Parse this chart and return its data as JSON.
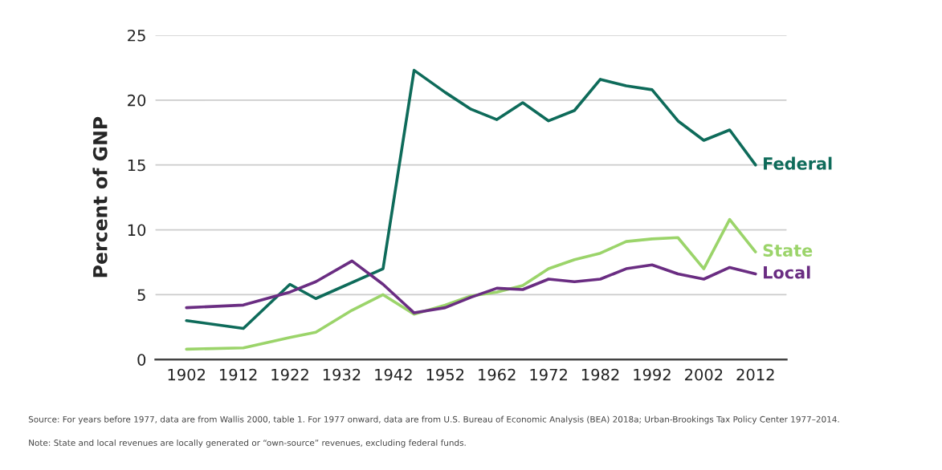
{
  "chart_data": {
    "type": "line",
    "ylabel": "Percent of GNP",
    "x": [
      1902,
      1913,
      1922,
      1927,
      1934,
      1940,
      1946,
      1952,
      1957,
      1962,
      1967,
      1972,
      1977,
      1982,
      1987,
      1992,
      1997,
      2002,
      2007,
      2012
    ],
    "series": [
      {
        "name": "Federal",
        "color": "#0e6b5a",
        "x": [
          1902,
          1913,
          1922,
          1927,
          1940,
          1946,
          1952,
          1957,
          1962,
          1967,
          1972,
          1977,
          1982,
          1987,
          1992,
          1997,
          2002,
          2007,
          2012
        ],
        "values": [
          3.0,
          2.4,
          5.8,
          4.7,
          7.0,
          22.3,
          20.6,
          19.3,
          18.5,
          19.8,
          18.4,
          19.2,
          21.6,
          21.1,
          20.8,
          18.4,
          16.9,
          17.7,
          15.0
        ]
      },
      {
        "name": "State",
        "color": "#9bd46a",
        "values": [
          0.8,
          0.9,
          1.7,
          2.1,
          3.8,
          5.0,
          3.5,
          4.2,
          4.9,
          5.2,
          5.7,
          7.0,
          7.7,
          8.2,
          9.1,
          9.3,
          9.4,
          7.0,
          10.8,
          8.3
        ]
      },
      {
        "name": "Local",
        "color": "#6a2d82",
        "values": [
          4.0,
          4.2,
          5.2,
          6.0,
          7.6,
          5.8,
          3.6,
          4.0,
          4.8,
          5.5,
          5.4,
          6.2,
          6.0,
          6.2,
          7.0,
          7.3,
          6.6,
          6.2,
          7.1,
          6.6
        ]
      }
    ],
    "xlim": [
      1896,
      2018
    ],
    "xticks": [
      1902,
      1912,
      1922,
      1932,
      1942,
      1952,
      1962,
      1972,
      1982,
      1992,
      2002,
      2012
    ],
    "ylim": [
      0,
      25
    ],
    "yticks": [
      0,
      5,
      10,
      15,
      20,
      25
    ],
    "grid": "y",
    "legend": false,
    "marker": "none",
    "line_style": "solid",
    "annotations": [
      "Source: For years before 1977, data are from Wallis 2000, table 1. For 1977 onward, data are from U.S. Bureau of Economic Analysis (BEA) 2018a; Urban-Brookings Tax Policy Center 1977–2014.",
      "Note: State and local revenues are locally generated or “own-source” revenues, excluding federal funds."
    ]
  }
}
